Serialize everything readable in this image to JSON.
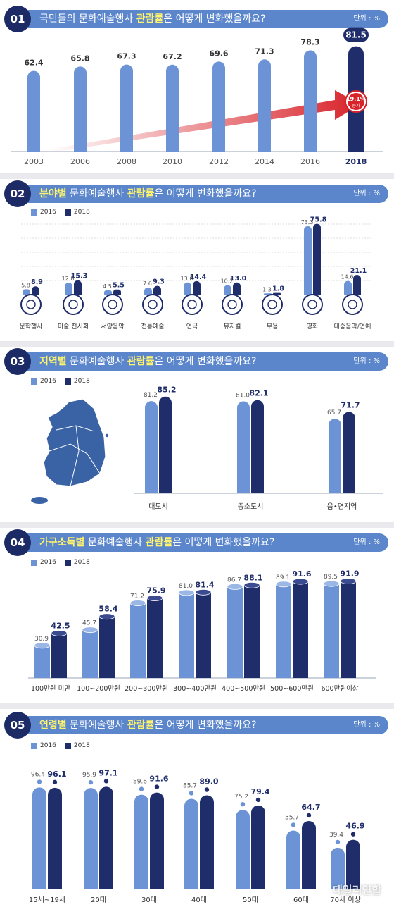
{
  "colors": {
    "c2016": "#6b93d6",
    "c2018": "#1f2d6b",
    "banner": "#5b86cc",
    "highlight": "#fff36b",
    "arrow": "#d8232a"
  },
  "sections": [
    {
      "num": "01",
      "pre": "국민들의 문화예술행사 ",
      "hl": "관람률",
      "post": "은 어떻게 변화했을까요?",
      "unit": "단위 : %"
    },
    {
      "num": "02",
      "pre": "",
      "hl": "분야별",
      "post": " 문화예술행사 ",
      "hl2": "관람률",
      "post2": "은 어떻게 변화했을까요?",
      "unit": "단위 : %"
    },
    {
      "num": "03",
      "pre": "",
      "hl": "지역별",
      "post": " 문화예술행사 ",
      "hl2": "관람률",
      "post2": "은 어떻게 변화했을까요?",
      "unit": "단위 : %"
    },
    {
      "num": "04",
      "pre": "",
      "hl": "가구소득별",
      "post": " 문화예술행사 ",
      "hl2": "관람률",
      "post2": "은 어떻게 변화했을까요?",
      "unit": "단위 : %"
    },
    {
      "num": "05",
      "pre": "",
      "hl": "연령별",
      "post": " 문화예술행사 ",
      "hl2": "관람률",
      "post2": "은 어떻게 변화했을까요?",
      "unit": "단위 : %"
    }
  ],
  "legend": {
    "a": "2016",
    "b": "2018"
  },
  "growth": {
    "value": "19.1%",
    "label": "증가"
  },
  "watermark": "데일리연합",
  "chart_data": [
    {
      "type": "bar",
      "categories": [
        "2003",
        "2006",
        "2008",
        "2010",
        "2012",
        "2014",
        "2016",
        "2018"
      ],
      "values": [
        62.4,
        65.8,
        67.3,
        67.2,
        69.6,
        71.3,
        78.3,
        81.5
      ],
      "ylim": [
        0,
        90
      ]
    },
    {
      "type": "bar",
      "categories": [
        "문학행사",
        "미술 전시회",
        "서양음악",
        "전통예술",
        "연극",
        "뮤지컬",
        "무용",
        "영화",
        "대중음악/연예"
      ],
      "series": [
        {
          "name": "2016",
          "values": [
            5.8,
            12.8,
            4.5,
            7.6,
            13.0,
            10.2,
            1.3,
            73.3,
            14.6
          ]
        },
        {
          "name": "2018",
          "values": [
            8.9,
            15.3,
            5.5,
            9.3,
            14.4,
            13.0,
            1.8,
            75.8,
            21.1
          ]
        }
      ],
      "ylim": [
        0,
        80
      ]
    },
    {
      "type": "bar",
      "categories": [
        "대도시",
        "중소도시",
        "읍•면지역"
      ],
      "series": [
        {
          "name": "2016",
          "values": [
            81.2,
            81.0,
            65.7
          ]
        },
        {
          "name": "2018",
          "values": [
            85.2,
            82.1,
            71.7
          ]
        }
      ],
      "ylim": [
        0,
        90
      ]
    },
    {
      "type": "bar",
      "categories": [
        "100만원 미만",
        "100~200만원",
        "200~300만원",
        "300~400만원",
        "400~500만원",
        "500~600만원",
        "600만원이상"
      ],
      "series": [
        {
          "name": "2016",
          "values": [
            30.9,
            45.7,
            71.2,
            81.0,
            86.7,
            89.1,
            89.5
          ]
        },
        {
          "name": "2018",
          "values": [
            42.5,
            58.4,
            75.9,
            81.4,
            88.1,
            91.6,
            91.9
          ]
        }
      ],
      "ylim": [
        0,
        95
      ]
    },
    {
      "type": "bar",
      "categories": [
        "15세~19세",
        "20대",
        "30대",
        "40대",
        "50대",
        "60대",
        "70세 이상"
      ],
      "series": [
        {
          "name": "2016",
          "values": [
            96.4,
            95.9,
            89.6,
            85.7,
            75.2,
            55.7,
            39.4
          ]
        },
        {
          "name": "2018",
          "values": [
            96.1,
            97.1,
            91.6,
            89.0,
            79.4,
            64.7,
            46.9
          ]
        }
      ],
      "ylim": [
        0,
        100
      ]
    }
  ]
}
